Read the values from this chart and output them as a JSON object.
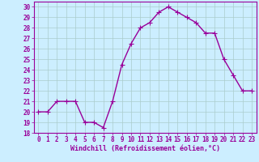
{
  "x": [
    0,
    1,
    2,
    3,
    4,
    5,
    6,
    7,
    8,
    9,
    10,
    11,
    12,
    13,
    14,
    15,
    16,
    17,
    18,
    19,
    20,
    21,
    22,
    23
  ],
  "y": [
    20,
    20,
    21,
    21,
    21,
    19,
    19,
    18.5,
    21,
    24.5,
    26.5,
    28,
    28.5,
    29.5,
    30,
    29.5,
    29,
    28.5,
    27.5,
    27.5,
    25,
    23.5,
    22,
    22
  ],
  "line_color": "#990099",
  "marker": "+",
  "markersize": 4,
  "linewidth": 1.0,
  "bg_color": "#cceeff",
  "grid_color": "#aacccc",
  "xlabel": "Windchill (Refroidissement éolien,°C)",
  "xlabel_fontsize": 6.0,
  "tick_fontsize": 5.5,
  "ylim": [
    18,
    30.5
  ],
  "yticks": [
    18,
    19,
    20,
    21,
    22,
    23,
    24,
    25,
    26,
    27,
    28,
    29,
    30
  ],
  "xlim": [
    -0.5,
    23.5
  ],
  "xticks": [
    0,
    1,
    2,
    3,
    4,
    5,
    6,
    7,
    8,
    9,
    10,
    11,
    12,
    13,
    14,
    15,
    16,
    17,
    18,
    19,
    20,
    21,
    22,
    23
  ]
}
